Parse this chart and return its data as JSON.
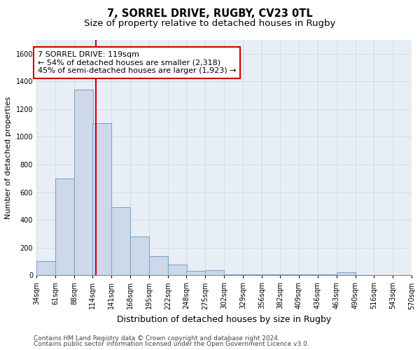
{
  "title1": "7, SORREL DRIVE, RUGBY, CV23 0TL",
  "title2": "Size of property relative to detached houses in Rugby",
  "xlabel": "Distribution of detached houses by size in Rugby",
  "ylabel": "Number of detached properties",
  "bar_left_edges": [
    34,
    61,
    88,
    114,
    141,
    168,
    195,
    222,
    248,
    275,
    302,
    329,
    356,
    382,
    409,
    436,
    463,
    490,
    516,
    543
  ],
  "bar_heights": [
    100,
    700,
    1340,
    1100,
    490,
    280,
    140,
    75,
    30,
    35,
    5,
    5,
    5,
    5,
    5,
    5,
    20,
    0,
    0,
    0
  ],
  "bin_width": 27,
  "bar_color": "#cdd9ea",
  "bar_edge_color": "#7ba7cc",
  "bar_edge_width": 0.8,
  "red_line_x": 119,
  "red_line_color": "#cc0000",
  "annotation_line1": "7 SORREL DRIVE: 119sqm",
  "annotation_line2": "← 54% of detached houses are smaller (2,318)",
  "annotation_line3": "45% of semi-detached houses are larger (1,923) →",
  "annotation_box_color": "#ffffff",
  "annotation_box_edge": "#cc0000",
  "grid_color": "#d5dde8",
  "background_color": "#e8eef5",
  "ylim": [
    0,
    1700
  ],
  "yticks": [
    0,
    200,
    400,
    600,
    800,
    1000,
    1200,
    1400,
    1600
  ],
  "tick_labels": [
    "34sqm",
    "61sqm",
    "88sqm",
    "114sqm",
    "141sqm",
    "168sqm",
    "195sqm",
    "222sqm",
    "248sqm",
    "275sqm",
    "302sqm",
    "329sqm",
    "356sqm",
    "382sqm",
    "409sqm",
    "436sqm",
    "463sqm",
    "490sqm",
    "516sqm",
    "543sqm",
    "570sqm"
  ],
  "footnote1": "Contains HM Land Registry data © Crown copyright and database right 2024.",
  "footnote2": "Contains public sector information licensed under the Open Government Licence v3.0.",
  "title1_fontsize": 10.5,
  "title2_fontsize": 9.5,
  "xlabel_fontsize": 9,
  "ylabel_fontsize": 8,
  "tick_fontsize": 7,
  "annotation_fontsize": 8,
  "footnote_fontsize": 6.5
}
